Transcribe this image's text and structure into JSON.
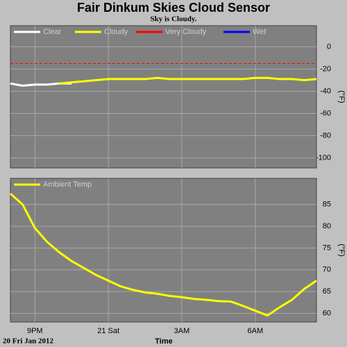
{
  "chart_data": [
    {
      "type": "line",
      "title": "Fair Dinkum Skies Cloud Sensor",
      "subtitle": "Sky is Cloudy.",
      "ylabel": "(°F)",
      "x": [
        20,
        20.5,
        21,
        21.5,
        22,
        22.5,
        23,
        23.5,
        24,
        24.5,
        25,
        25.5,
        26,
        26.5,
        27,
        27.5,
        28,
        28.5,
        29,
        29.5,
        30,
        30.5,
        31,
        31.5,
        32,
        32.5
      ],
      "xlim": [
        20,
        32.5
      ],
      "ylim": [
        -109,
        19
      ],
      "yticks": [
        0,
        -20,
        -40,
        -60,
        -80,
        -100
      ],
      "grid": true,
      "series": [
        {
          "name": "Clear",
          "color": "#ffffff",
          "values": [
            -33,
            -35,
            -34,
            -34,
            -33,
            -33,
            null,
            null,
            null,
            null,
            null,
            null,
            null,
            null,
            null,
            null,
            null,
            null,
            null,
            null,
            null,
            null,
            null,
            null,
            null,
            null
          ]
        },
        {
          "name": "Cloudy",
          "color": "#ffff00",
          "values": [
            null,
            null,
            null,
            null,
            -33,
            -32,
            -31,
            -30,
            -29,
            -29,
            -29,
            -29,
            -28,
            -29,
            -29,
            -29,
            -29,
            -29,
            -29,
            -29,
            -28,
            -28,
            -29,
            -29,
            -30,
            -29
          ]
        },
        {
          "name": "Very Cloudy",
          "color": "#ff0000",
          "threshold": -15
        },
        {
          "name": "Wet",
          "color": "#0000ff"
        }
      ]
    },
    {
      "type": "line",
      "ylabel": "(°F)",
      "xlabel": "Time",
      "date_label": "20 Fri Jan 2012",
      "x": [
        20,
        20.5,
        21,
        21.5,
        22,
        22.5,
        23,
        23.5,
        24,
        24.5,
        25,
        25.5,
        26,
        26.5,
        27,
        27.5,
        28,
        28.5,
        29,
        29.5,
        30,
        30.5,
        31,
        31.5,
        32,
        32.5
      ],
      "xlim": [
        20,
        32.5
      ],
      "ylim": [
        58,
        91
      ],
      "yticks": [
        60,
        65,
        70,
        75,
        80,
        85
      ],
      "grid": true,
      "xticks": [
        {
          "value": 21,
          "label": "9PM"
        },
        {
          "value": 24,
          "label": "21 Sat"
        },
        {
          "value": 27,
          "label": "3AM"
        },
        {
          "value": 30,
          "label": "6AM"
        }
      ],
      "series": [
        {
          "name": "Ambient Temp",
          "color": "#ffff00",
          "values": [
            87.5,
            85,
            79.6,
            76.4,
            74,
            72,
            70.4,
            68.8,
            67.5,
            66.2,
            65.4,
            64.8,
            64.5,
            64,
            63.7,
            63.3,
            63.1,
            62.8,
            62.7,
            61.7,
            60.6,
            59.5,
            61.4,
            63.1,
            65.6,
            67.5
          ]
        }
      ]
    }
  ]
}
